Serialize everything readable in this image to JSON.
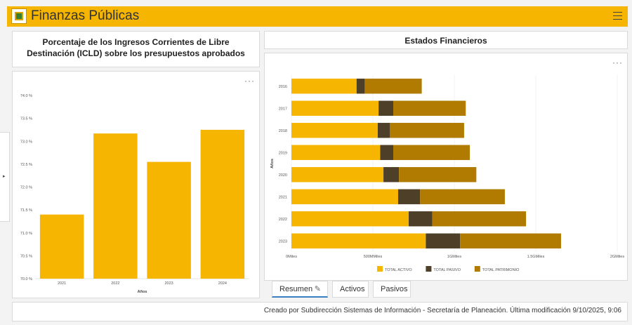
{
  "header": {
    "title": "Finanzas Públicas",
    "brand_color": "#f5b500"
  },
  "left_panel": {
    "title": "Porcentaje de los Ingresos Corrientes de Libre Destinación (ICLD) sobre los presupuestos aprobados",
    "menu": "···"
  },
  "right_panel": {
    "title": "Estados Financieros",
    "menu": "···"
  },
  "tabs": [
    {
      "label": "Resumen",
      "active": true
    },
    {
      "label": "Activos",
      "active": false
    },
    {
      "label": "Pasivos",
      "active": false
    }
  ],
  "footer": {
    "text": "Creado por Subdirección Sistemas de Información - Secretaría de Planeación. Última modificación 9/10/2025, 9:06"
  },
  "side_toggle": "▸",
  "chart_data": [
    {
      "type": "bar",
      "categories": [
        "2021",
        "2022",
        "2023",
        "2024"
      ],
      "values": [
        71.4,
        73.17,
        72.55,
        73.25
      ],
      "xlabel": "Años",
      "ylabel": "",
      "ylim": [
        70.0,
        74.0
      ],
      "yticks": [
        "74.0 %",
        "73.5 %",
        "73.0 %",
        "72.5 %",
        "72.0 %",
        "71.5 %",
        "71.0 %",
        "70.5 %",
        "70.0 %"
      ],
      "color": "#f5b500",
      "grid": false
    },
    {
      "type": "bar",
      "orientation": "horizontal",
      "stacked": true,
      "categories": [
        "2016",
        "2017",
        "2018",
        "2019",
        "2020",
        "2021",
        "2022",
        "2023"
      ],
      "series": [
        {
          "name": "TOTAL ACTIVO",
          "color": "#f5b500",
          "values": [
            400,
            535,
            530,
            545,
            565,
            655,
            720,
            825
          ]
        },
        {
          "name": "TOTAL PASIVO",
          "color": "#4e4028",
          "values": [
            50,
            90,
            75,
            80,
            95,
            135,
            145,
            210
          ]
        },
        {
          "name": "TOTAL PATRIMONIO",
          "color": "#b07b00",
          "values": [
            350,
            445,
            455,
            470,
            475,
            520,
            575,
            620
          ]
        }
      ],
      "xticks": [
        "0Miles",
        "500MMiles",
        "1GMiles",
        "1.5GMiles",
        "2GMiles"
      ],
      "xlim": [
        0,
        2000
      ],
      "ylabel": "Años",
      "legend": "bottom",
      "grid": true
    }
  ]
}
